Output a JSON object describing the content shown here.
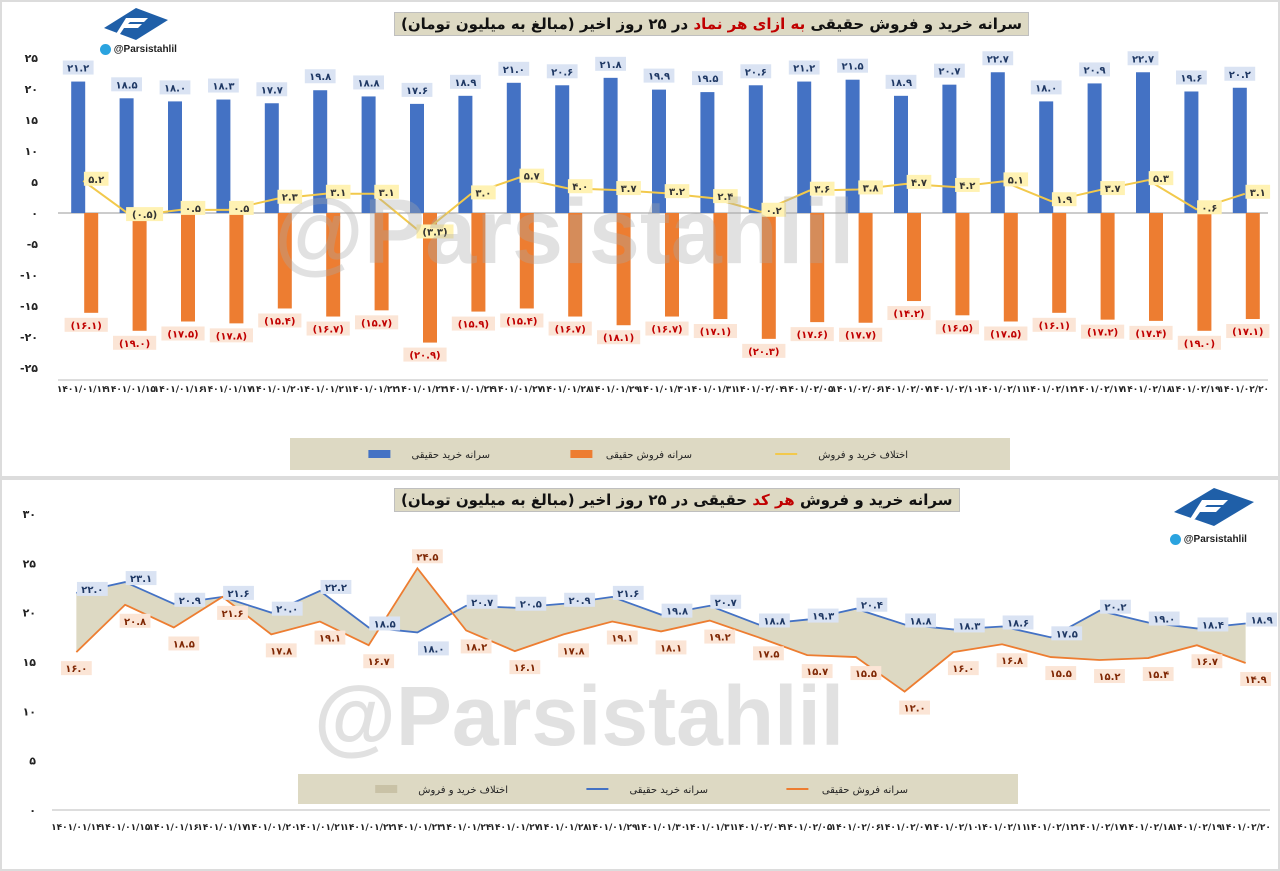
{
  "panel1": {
    "title_part1": "سرانه خرید و فروش حقیقی",
    "title_highlight": "به ازای هر نماد",
    "title_part2": "در ۲۵ روز اخیر (مبالغ به میلیون تومان)",
    "handle": "@Parsistahlil",
    "watermark": "@Parsistahlil",
    "colors": {
      "buy": "#4472c4",
      "sell": "#ed7d31",
      "diff": "#f2c94c",
      "legend_bg": "#ddd9c3",
      "buy_label_bg": "#dae3f3",
      "sell_label_bg": "#fbe5d6",
      "diff_label_bg": "#fff2b3"
    }
  },
  "panel2": {
    "title_part1": "سرانه خرید و فروش حقیقی در ۲۵ روز اخیر",
    "title_highlight": "هر کد",
    "title_part2": "حقیقی در ۲۵ روز اخیر (مبالغ به میلیون تومان)",
    "handle": "@Parsistahlil",
    "watermark": "@Parsistahlil",
    "colors": {
      "buy": "#4472c4",
      "sell": "#ed7d31",
      "area": "#ddd9c3"
    }
  },
  "chart_data": [
    {
      "type": "bar",
      "title": "سرانه خرید و فروش حقیقی به ازای هر نماد در ۲۵ روز اخیر (مبالغ به میلیون تومان)",
      "categories": [
        "۱۴۰۱/۰۱/۱۴",
        "۱۴۰۱/۰۱/۱۵",
        "۱۴۰۱/۰۱/۱۶",
        "۱۴۰۱/۰۱/۱۷",
        "۱۴۰۱/۰۱/۲۰",
        "۱۴۰۱/۰۱/۲۱",
        "۱۴۰۱/۰۱/۲۲",
        "۱۴۰۱/۰۱/۲۳",
        "۱۴۰۱/۰۱/۲۴",
        "۱۴۰۱/۰۱/۲۷",
        "۱۴۰۱/۰۱/۲۸",
        "۱۴۰۱/۰۱/۲۹",
        "۱۴۰۱/۰۱/۳۰",
        "۱۴۰۱/۰۱/۳۱",
        "۱۴۰۱/۰۲/۰۴",
        "۱۴۰۱/۰۲/۰۵",
        "۱۴۰۱/۰۲/۰۶",
        "۱۴۰۱/۰۲/۰۷",
        "۱۴۰۱/۰۲/۱۰",
        "۱۴۰۱/۰۲/۱۱",
        "۱۴۰۱/۰۲/۱۲",
        "۱۴۰۱/۰۲/۱۷",
        "۱۴۰۱/۰۲/۱۸",
        "۱۴۰۱/۰۲/۱۹",
        "۱۴۰۱/۰۲/۲۰"
      ],
      "series": [
        {
          "name": "سرانه خرید حقیقی",
          "values": [
            21.2,
            18.5,
            18.0,
            18.3,
            17.7,
            19.8,
            18.8,
            17.6,
            18.9,
            21.0,
            20.6,
            21.8,
            19.9,
            19.5,
            20.6,
            21.2,
            21.5,
            18.9,
            20.7,
            22.7,
            18.0,
            20.9,
            22.7,
            19.6,
            20.2
          ],
          "labels": [
            "۲۱.۲",
            "۱۸.۵",
            "۱۸.۰",
            "۱۸.۳",
            "۱۷.۷",
            "۱۹.۸",
            "۱۸.۸",
            "۱۷.۶",
            "۱۸.۹",
            "۲۱.۰",
            "۲۰.۶",
            "۲۱.۸",
            "۱۹.۹",
            "۱۹.۵",
            "۲۰.۶",
            "۲۱.۲",
            "۲۱.۵",
            "۱۸.۹",
            "۲۰.۷",
            "۲۲.۷",
            "۱۸.۰",
            "۲۰.۹",
            "۲۲.۷",
            "۱۹.۶",
            "۲۰.۲"
          ]
        },
        {
          "name": "سرانه فروش حقیقی",
          "values": [
            -16.1,
            -19.0,
            -17.5,
            -17.8,
            -15.4,
            -16.7,
            -15.7,
            -20.9,
            -15.9,
            -15.4,
            -16.7,
            -18.1,
            -16.7,
            -17.1,
            -20.3,
            -17.6,
            -17.7,
            -14.2,
            -16.5,
            -17.5,
            -16.1,
            -17.2,
            -17.4,
            -19.0,
            -17.1
          ],
          "labels": [
            "(۱۶.۱)",
            "(۱۹.۰)",
            "(۱۷.۵)",
            "(۱۷.۸)",
            "(۱۵.۴)",
            "(۱۶.۷)",
            "(۱۵.۷)",
            "(۲۰.۹)",
            "(۱۵.۹)",
            "(۱۵.۴)",
            "(۱۶.۷)",
            "(۱۸.۱)",
            "(۱۶.۷)",
            "(۱۷.۱)",
            "(۲۰.۳)",
            "(۱۷.۶)",
            "(۱۷.۷)",
            "(۱۴.۲)",
            "(۱۶.۵)",
            "(۱۷.۵)",
            "(۱۶.۱)",
            "(۱۷.۲)",
            "(۱۷.۴)",
            "(۱۹.۰)",
            "(۱۷.۱)"
          ]
        },
        {
          "name": "اختلاف خرید و فروش",
          "type": "line",
          "values": [
            5.2,
            -0.5,
            0.5,
            0.5,
            2.3,
            3.1,
            3.1,
            -3.3,
            3.0,
            5.7,
            4.0,
            3.7,
            3.2,
            2.4,
            0.2,
            3.6,
            3.8,
            4.7,
            4.2,
            5.1,
            1.9,
            3.7,
            5.3,
            0.6,
            3.1
          ],
          "labels": [
            "۵.۲",
            "(۰.۵)",
            "۰.۵",
            "۰.۵",
            "۲.۳",
            "۳.۱",
            "۳.۱",
            "(۳.۳)",
            "۳.۰",
            "۵.۷",
            "۴.۰",
            "۳.۷",
            "۳.۲",
            "۲.۴",
            "۰.۲",
            "۳.۶",
            "۳.۸",
            "۴.۷",
            "۴.۲",
            "۵.۱",
            "۱.۹",
            "۳.۷",
            "۵.۳",
            "۰.۶",
            "۳.۱"
          ]
        }
      ],
      "ylim": [
        -25,
        25
      ],
      "yticks": [
        25,
        20,
        15,
        10,
        5,
        0,
        -5,
        -10,
        -15,
        -20,
        -25
      ],
      "ytick_labels": [
        "۲۵",
        "۲۰",
        "۱۵",
        "۱۰",
        "۵",
        "۰",
        "-۵",
        "-۱۰",
        "-۱۵",
        "-۲۰",
        "-۲۵"
      ],
      "legend_position": "bottom",
      "legend": [
        "سرانه خرید حقیقی",
        "سرانه فروش حقیقی",
        "اختلاف خرید و فروش"
      ]
    },
    {
      "type": "area",
      "title": "سرانه خرید و فروش هر کد حقیقی در ۲۵ روز اخیر (مبالغ به میلیون تومان)",
      "categories": [
        "۱۴۰۱/۰۱/۱۴",
        "۱۴۰۱/۰۱/۱۵",
        "۱۴۰۱/۰۱/۱۶",
        "۱۴۰۱/۰۱/۱۷",
        "۱۴۰۱/۰۱/۲۰",
        "۱۴۰۱/۰۱/۲۱",
        "۱۴۰۱/۰۱/۲۲",
        "۱۴۰۱/۰۱/۲۳",
        "۱۴۰۱/۰۱/۲۴",
        "۱۴۰۱/۰۱/۲۷",
        "۱۴۰۱/۰۱/۲۸",
        "۱۴۰۱/۰۱/۲۹",
        "۱۴۰۱/۰۱/۳۰",
        "۱۴۰۱/۰۱/۳۱",
        "۱۴۰۱/۰۲/۰۴",
        "۱۴۰۱/۰۲/۰۵",
        "۱۴۰۱/۰۲/۰۶",
        "۱۴۰۱/۰۲/۰۷",
        "۱۴۰۱/۰۲/۱۰",
        "۱۴۰۱/۰۲/۱۱",
        "۱۴۰۱/۰۲/۱۲",
        "۱۴۰۱/۰۲/۱۷",
        "۱۴۰۱/۰۲/۱۸",
        "۱۴۰۱/۰۲/۱۹",
        "۱۴۰۱/۰۲/۲۰"
      ],
      "series": [
        {
          "name": "سرانه خرید حقیقی",
          "values": [
            22.0,
            23.1,
            20.9,
            21.6,
            20.0,
            22.2,
            18.5,
            18.0,
            20.7,
            20.5,
            20.9,
            21.6,
            19.8,
            20.7,
            18.8,
            19.3,
            20.4,
            18.8,
            18.3,
            18.6,
            17.5,
            20.2,
            19.0,
            18.4,
            18.9
          ],
          "labels": [
            "۲۲.۰",
            "۲۳.۱",
            "۲۰.۹",
            "۲۱.۶",
            "۲۰.۰",
            "۲۲.۲",
            "۱۸.۵",
            "۱۸.۰",
            "۲۰.۷",
            "۲۰.۵",
            "۲۰.۹",
            "۲۱.۶",
            "۱۹.۸",
            "۲۰.۷",
            "۱۸.۸",
            "۱۹.۳",
            "۲۰.۴",
            "۱۸.۸",
            "۱۸.۳",
            "۱۸.۶",
            "۱۷.۵",
            "۲۰.۲",
            "۱۹.۰",
            "۱۸.۴",
            "۱۸.۹"
          ]
        },
        {
          "name": "سرانه فروش حقیقی",
          "values": [
            16.0,
            20.8,
            18.5,
            21.6,
            17.8,
            19.1,
            16.7,
            24.5,
            18.2,
            16.1,
            17.8,
            19.1,
            18.1,
            19.2,
            17.5,
            15.7,
            15.5,
            12.0,
            16.0,
            16.8,
            15.5,
            15.2,
            15.4,
            16.7,
            14.9
          ],
          "labels": [
            "۱۶.۰",
            "۲۰.۸",
            "۱۸.۵",
            "۲۱.۶",
            "۱۷.۸",
            "۱۹.۱",
            "۱۶.۷",
            "۲۴.۵",
            "۱۸.۲",
            "۱۶.۱",
            "۱۷.۸",
            "۱۹.۱",
            "۱۸.۱",
            "۱۹.۲",
            "۱۷.۵",
            "۱۵.۷",
            "۱۵.۵",
            "۱۲.۰",
            "۱۶.۰",
            "۱۶.۸",
            "۱۵.۵",
            "۱۵.۲",
            "۱۵.۴",
            "۱۶.۷",
            "۱۴.۹"
          ]
        }
      ],
      "ylim": [
        0,
        30
      ],
      "yticks": [
        30,
        25,
        20,
        15,
        10,
        5,
        0
      ],
      "ytick_labels": [
        "۳۰",
        "۲۵",
        "۲۰",
        "۱۵",
        "۱۰",
        "۵",
        "۰"
      ],
      "legend_position": "bottom",
      "legend": [
        "اختلاف خرید و فروش",
        "سرانه خرید حقیقی",
        "سرانه فروش حقیقی"
      ]
    }
  ]
}
